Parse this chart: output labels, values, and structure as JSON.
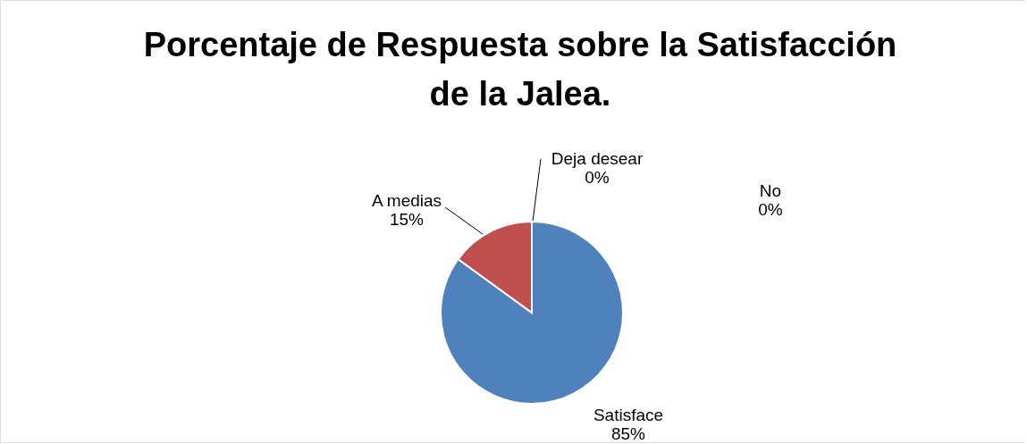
{
  "chart_data": {
    "type": "pie",
    "title": "Porcentaje de Respuesta sobre la Satisfacción de la Jalea.",
    "categories": [
      "Satisface",
      "A medias",
      "Deja desear",
      "No"
    ],
    "values": [
      85,
      15,
      0,
      0
    ],
    "value_labels": [
      "85%",
      "15%",
      "0%",
      "0%"
    ],
    "colors": [
      "#4f81bd",
      "#c0504d",
      "#9bbb59",
      "#8064a2"
    ],
    "legend": false
  }
}
